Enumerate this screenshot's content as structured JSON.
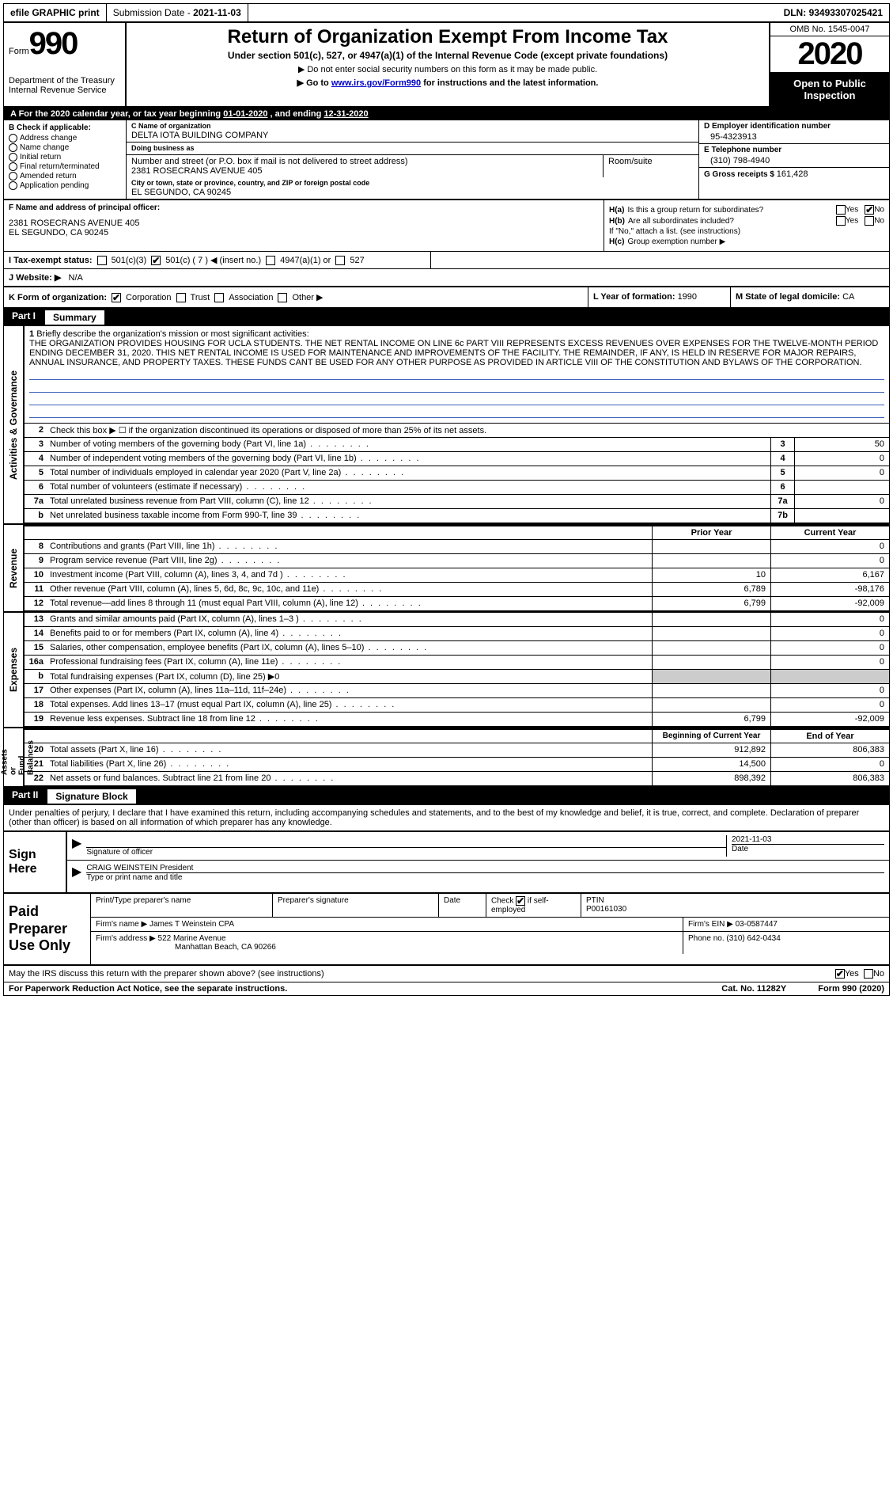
{
  "topbar": {
    "efile": "efile GRAPHIC print",
    "submission_label": "Submission Date - ",
    "submission_date": "2021-11-03",
    "dln_label": "DLN: ",
    "dln": "93493307025421"
  },
  "header": {
    "form_word": "Form",
    "form_num": "990",
    "dept": "Department of the Treasury\nInternal Revenue Service",
    "title": "Return of Organization Exempt From Income Tax",
    "subtitle": "Under section 501(c), 527, or 4947(a)(1) of the Internal Revenue Code (except private foundations)",
    "note1": "▶ Do not enter social security numbers on this form as it may be made public.",
    "note2_pre": "▶ Go to ",
    "note2_link": "www.irs.gov/Form990",
    "note2_post": " for instructions and the latest information.",
    "omb": "OMB No. 1545-0047",
    "year": "2020",
    "open": "Open to Public Inspection"
  },
  "period": {
    "text_pre": "A For the 2020 calendar year, or tax year beginning ",
    "begin": "01-01-2020",
    "mid": "   , and ending ",
    "end": "12-31-2020"
  },
  "section_b": {
    "label": "B Check if applicable:",
    "items": [
      "Address change",
      "Name change",
      "Initial return",
      "Final return/terminated",
      "Amended return",
      "Application pending"
    ],
    "checked": []
  },
  "section_c": {
    "name_label": "C Name of organization",
    "name": "DELTA IOTA BUILDING COMPANY",
    "dba_label": "Doing business as",
    "dba": "",
    "street_label": "Number and street (or P.O. box if mail is not delivered to street address)",
    "street": "2381 ROSECRANS AVENUE 405",
    "room_label": "Room/suite",
    "room": "",
    "city_label": "City or town, state or province, country, and ZIP or foreign postal code",
    "city": "EL SEGUNDO, CA  90245"
  },
  "section_d": {
    "ein_label": "D Employer identification number",
    "ein": "95-4323913",
    "phone_label": "E Telephone number",
    "phone": "(310) 798-4940",
    "gross_label": "G Gross receipts $ ",
    "gross": "161,428"
  },
  "section_f": {
    "label": "F  Name and address of principal officer:",
    "line1": "2381 ROSECRANS AVENUE 405",
    "line2": "EL SEGUNDO, CA  90245"
  },
  "section_h": {
    "h_a_label": "H(a)",
    "h_a_text": "Is this a group return for subordinates?",
    "h_a_yes": "Yes",
    "h_a_no": "No",
    "h_a_checked": "No",
    "h_b_label": "H(b)",
    "h_b_text": "Are all subordinates included?",
    "h_b_yes": "Yes",
    "h_b_no": "No",
    "h_b_note": "If \"No,\" attach a list. (see instructions)",
    "h_c_label": "H(c)",
    "h_c_text": "Group exemption number ▶"
  },
  "section_i": {
    "label": "I  Tax-exempt status:",
    "opts": [
      "501(c)(3)",
      "501(c) ( 7 ) ◀ (insert no.)",
      "4947(a)(1) or",
      "527"
    ],
    "checked_index": 1
  },
  "section_j": {
    "label": "J  Website: ▶",
    "value": "N/A"
  },
  "section_k": {
    "label": "K Form of organization:",
    "opts": [
      "Corporation",
      "Trust",
      "Association",
      "Other ▶"
    ],
    "checked_index": 0,
    "l_label": "L Year of formation: ",
    "l_value": "1990",
    "m_label": "M State of legal domicile: ",
    "m_value": "CA"
  },
  "part1": {
    "num": "Part I",
    "title": "Summary"
  },
  "mission": {
    "num": "1",
    "label": "Briefly describe the organization's mission or most significant activities:",
    "text": "THE ORGANIZATION PROVIDES HOUSING FOR UCLA STUDENTS. THE NET RENTAL INCOME ON LINE 6c PART VIII REPRESENTS EXCESS REVENUES OVER EXPENSES FOR THE TWELVE-MONTH PERIOD ENDING DECEMBER 31, 2020. THIS NET RENTAL INCOME IS USED FOR MAINTENANCE AND IMPROVEMENTS OF THE FACILITY. THE REMAINDER, IF ANY, IS HELD IN RESERVE FOR MAJOR REPAIRS, ANNUAL INSURANCE, AND PROPERTY TAXES. THESE FUNDS CANT BE USED FOR ANY OTHER PURPOSE AS PROVIDED IN ARTICLE VIII OF THE CONSTITUTION AND BYLAWS OF THE CORPORATION."
  },
  "line2": {
    "num": "2",
    "text": "Check this box ▶ ☐  if the organization discontinued its operations or disposed of more than 25% of its net assets."
  },
  "gov_lines": [
    {
      "num": "3",
      "desc": "Number of voting members of the governing body (Part VI, line 1a)",
      "box": "3",
      "val": "50"
    },
    {
      "num": "4",
      "desc": "Number of independent voting members of the governing body (Part VI, line 1b)",
      "box": "4",
      "val": "0"
    },
    {
      "num": "5",
      "desc": "Total number of individuals employed in calendar year 2020 (Part V, line 2a)",
      "box": "5",
      "val": "0"
    },
    {
      "num": "6",
      "desc": "Total number of volunteers (estimate if necessary)",
      "box": "6",
      "val": ""
    },
    {
      "num": "7a",
      "desc": "Total unrelated business revenue from Part VIII, column (C), line 12",
      "box": "7a",
      "val": "0"
    },
    {
      "num": "b",
      "desc": "Net unrelated business taxable income from Form 990-T, line 39",
      "box": "7b",
      "val": ""
    }
  ],
  "rev_hdr": {
    "prior": "Prior Year",
    "current": "Current Year"
  },
  "rev_lines": [
    {
      "num": "8",
      "desc": "Contributions and grants (Part VIII, line 1h)",
      "prior": "",
      "current": "0"
    },
    {
      "num": "9",
      "desc": "Program service revenue (Part VIII, line 2g)",
      "prior": "",
      "current": "0"
    },
    {
      "num": "10",
      "desc": "Investment income (Part VIII, column (A), lines 3, 4, and 7d )",
      "prior": "10",
      "current": "6,167"
    },
    {
      "num": "11",
      "desc": "Other revenue (Part VIII, column (A), lines 5, 6d, 8c, 9c, 10c, and 11e)",
      "prior": "6,789",
      "current": "-98,176"
    },
    {
      "num": "12",
      "desc": "Total revenue—add lines 8 through 11 (must equal Part VIII, column (A), line 12)",
      "prior": "6,799",
      "current": "-92,009"
    }
  ],
  "exp_lines": [
    {
      "num": "13",
      "desc": "Grants and similar amounts paid (Part IX, column (A), lines 1–3 )",
      "prior": "",
      "current": "0"
    },
    {
      "num": "14",
      "desc": "Benefits paid to or for members (Part IX, column (A), line 4)",
      "prior": "",
      "current": "0"
    },
    {
      "num": "15",
      "desc": "Salaries, other compensation, employee benefits (Part IX, column (A), lines 5–10)",
      "prior": "",
      "current": "0"
    },
    {
      "num": "16a",
      "desc": "Professional fundraising fees (Part IX, column (A), line 11e)",
      "prior": "",
      "current": "0"
    },
    {
      "num": "b",
      "desc": "Total fundraising expenses (Part IX, column (D), line 25) ▶0",
      "prior": "shade",
      "current": "shade"
    },
    {
      "num": "17",
      "desc": "Other expenses (Part IX, column (A), lines 11a–11d, 11f–24e)",
      "prior": "",
      "current": "0"
    },
    {
      "num": "18",
      "desc": "Total expenses. Add lines 13–17 (must equal Part IX, column (A), line 25)",
      "prior": "",
      "current": "0"
    },
    {
      "num": "19",
      "desc": "Revenue less expenses. Subtract line 18 from line 12",
      "prior": "6,799",
      "current": "-92,009"
    }
  ],
  "net_hdr": {
    "begin": "Beginning of Current Year",
    "end": "End of Year"
  },
  "net_lines": [
    {
      "num": "20",
      "desc": "Total assets (Part X, line 16)",
      "prior": "912,892",
      "current": "806,383"
    },
    {
      "num": "21",
      "desc": "Total liabilities (Part X, line 26)",
      "prior": "14,500",
      "current": "0"
    },
    {
      "num": "22",
      "desc": "Net assets or fund balances. Subtract line 21 from line 20",
      "prior": "898,392",
      "current": "806,383"
    }
  ],
  "side_tabs": {
    "gov": "Activities & Governance",
    "rev": "Revenue",
    "exp": "Expenses",
    "net": "Net Assets or\nFund Balances"
  },
  "part2": {
    "num": "Part II",
    "title": "Signature Block"
  },
  "sig_decl": "Under penalties of perjury, I declare that I have examined this return, including accompanying schedules and statements, and to the best of my knowledge and belief, it is true, correct, and complete. Declaration of preparer (other than officer) is based on all information of which preparer has any knowledge.",
  "sign_here": {
    "label": "Sign Here",
    "sig_officer": "Signature of officer",
    "date": "2021-11-03",
    "name": "CRAIG WEINSTEIN  President",
    "name_label": "Type or print name and title"
  },
  "paid": {
    "label": "Paid Preparer Use Only",
    "h1": "Print/Type preparer's name",
    "h2": "Preparer's signature",
    "h3": "Date",
    "h4_pre": "Check",
    "h4_post": "if self-employed",
    "ptin_label": "PTIN",
    "ptin": "P00161030",
    "firm_name_label": "Firm's name    ▶ ",
    "firm_name": "James T Weinstein CPA",
    "firm_ein_label": "Firm's EIN ▶ ",
    "firm_ein": "03-0587447",
    "firm_addr_label": "Firm's address ▶ ",
    "firm_addr1": "522 Marine Avenue",
    "firm_addr2": "Manhattan Beach, CA  90266",
    "phone_label": "Phone no. ",
    "phone": "(310) 642-0434"
  },
  "footer": {
    "discuss": "May the IRS discuss this return with the preparer shown above? (see instructions)",
    "yes": "Yes",
    "no": "No",
    "paperwork": "For Paperwork Reduction Act Notice, see the separate instructions.",
    "cat": "Cat. No. 11282Y",
    "form": "Form 990 (2020)"
  }
}
